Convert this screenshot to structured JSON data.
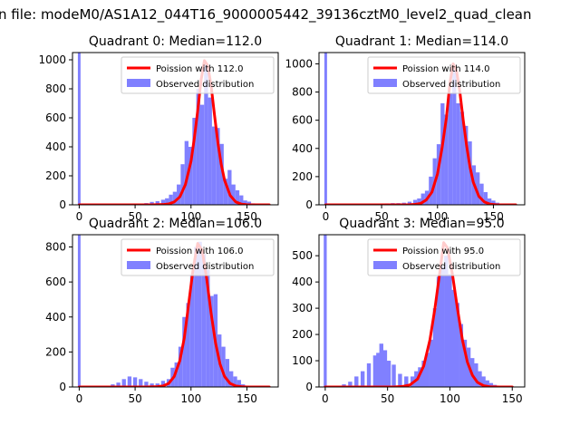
{
  "suptitle": "n file: modeM0/AS1A12_044T16_9000005442_39136cztM0_level2_quad_clean",
  "colors": {
    "poisson": "#ff0000",
    "hist": "#8080ff",
    "frame": "#000000"
  },
  "chart_data": [
    {
      "type": "bar",
      "title": "Quadrant 0: Median=112.0",
      "xlim": [
        -6,
        178
      ],
      "ylim": [
        0,
        1050
      ],
      "xticks": [
        0,
        50,
        100,
        150
      ],
      "yticks": [
        0,
        200,
        400,
        600,
        800,
        1000
      ],
      "legend": [
        "Poission with 112.0",
        "Observed distribution"
      ],
      "legend_loc": "upper right",
      "series": [
        {
          "name": "Poission with 112.0",
          "kind": "line",
          "x": [
            0,
            65,
            75,
            80,
            85,
            90,
            95,
            100,
            103,
            106,
            109,
            112,
            115,
            118,
            121,
            124,
            127,
            130,
            135,
            140,
            145,
            150,
            160,
            170
          ],
          "y": [
            0,
            0,
            2,
            6,
            20,
            55,
            140,
            300,
            460,
            650,
            860,
            995,
            960,
            820,
            620,
            430,
            280,
            170,
            65,
            20,
            5,
            1,
            0,
            0
          ]
        },
        {
          "name": "Observed distribution",
          "kind": "hist",
          "bin_width": 3.5,
          "spike": {
            "x": 0,
            "y": 1050
          },
          "x": [
            45,
            50,
            55,
            60,
            65,
            70,
            75,
            78.5,
            82,
            85.5,
            89,
            92.5,
            96,
            99.5,
            103,
            106.5,
            110,
            113.5,
            117,
            120.5,
            124,
            127.5,
            131,
            134.5,
            138,
            141.5,
            145,
            148.5,
            152,
            155.5
          ],
          "y": [
            2,
            3,
            5,
            12,
            20,
            25,
            35,
            45,
            70,
            90,
            140,
            280,
            440,
            400,
            600,
            800,
            690,
            970,
            740,
            540,
            530,
            420,
            180,
            240,
            140,
            100,
            65,
            30,
            22,
            10
          ]
        }
      ]
    },
    {
      "type": "bar",
      "title": "Quadrant 1: Median=114.0",
      "xlim": [
        -6,
        178
      ],
      "ylim": [
        0,
        1080
      ],
      "xticks": [
        0,
        50,
        100,
        150
      ],
      "yticks": [
        0,
        200,
        400,
        600,
        800,
        1000
      ],
      "legend": [
        "Poission with 114.0",
        "Observed distribution"
      ],
      "legend_loc": "upper right",
      "series": [
        {
          "name": "Poission with 114.0",
          "kind": "line",
          "x": [
            0,
            65,
            75,
            80,
            85,
            90,
            95,
            100,
            104,
            108,
            111,
            114,
            117,
            120,
            123,
            126,
            129,
            132,
            137,
            142,
            147,
            152,
            160,
            170
          ],
          "y": [
            0,
            0,
            1,
            3,
            10,
            35,
            90,
            220,
            400,
            620,
            860,
            1000,
            950,
            800,
            600,
            420,
            270,
            160,
            60,
            20,
            5,
            1,
            0,
            0
          ]
        },
        {
          "name": "Observed distribution",
          "kind": "hist",
          "bin_width": 3.5,
          "spike": {
            "x": 0,
            "y": 1080
          },
          "x": [
            50,
            55,
            60,
            65,
            70,
            75,
            80,
            83.5,
            87,
            90.5,
            94,
            97.5,
            101,
            104.5,
            108,
            111.5,
            115,
            118.5,
            122,
            125.5,
            129,
            132.5,
            136,
            139.5,
            143,
            146.5,
            150,
            153.5
          ],
          "y": [
            5,
            10,
            12,
            12,
            15,
            22,
            35,
            45,
            80,
            100,
            200,
            330,
            430,
            720,
            640,
            790,
            960,
            720,
            660,
            560,
            450,
            280,
            230,
            150,
            90,
            45,
            30,
            15
          ]
        }
      ]
    },
    {
      "type": "bar",
      "title": "Quadrant 2: Median=106.0",
      "xlim": [
        -6,
        178
      ],
      "ylim": [
        0,
        870
      ],
      "xticks": [
        0,
        50,
        100,
        150
      ],
      "yticks": [
        0,
        200,
        400,
        600,
        800
      ],
      "legend": [
        "Poission with 106.0",
        "Observed distribution"
      ],
      "legend_loc": "upper right",
      "series": [
        {
          "name": "Poission with 106.0",
          "kind": "line",
          "x": [
            0,
            60,
            70,
            75,
            80,
            85,
            90,
            94,
            98,
            102,
            106,
            110,
            114,
            118,
            122,
            126,
            130,
            135,
            140,
            145,
            150,
            160,
            170
          ],
          "y": [
            0,
            0,
            2,
            6,
            20,
            60,
            150,
            280,
            480,
            680,
            820,
            780,
            620,
            420,
            250,
            130,
            60,
            20,
            6,
            2,
            0,
            0,
            0
          ]
        },
        {
          "name": "Observed distribution",
          "kind": "hist",
          "bin_width": 3.5,
          "spike": {
            "x": 0,
            "y": 870
          },
          "x": [
            25,
            30,
            35,
            40,
            45,
            50,
            55,
            60,
            65,
            70,
            75,
            80,
            83.5,
            87,
            90.5,
            94,
            97.5,
            101,
            104.5,
            108,
            111.5,
            115,
            118.5,
            122,
            125.5,
            129,
            132.5,
            136,
            139.5,
            143,
            146.5,
            150
          ],
          "y": [
            5,
            15,
            25,
            45,
            60,
            55,
            45,
            30,
            20,
            20,
            35,
            45,
            110,
            140,
            230,
            400,
            480,
            640,
            800,
            830,
            760,
            670,
            520,
            530,
            300,
            230,
            160,
            90,
            60,
            40,
            15,
            8
          ]
        }
      ]
    },
    {
      "type": "bar",
      "title": "Quadrant 3: Median=95.0",
      "xlim": [
        -5,
        160
      ],
      "ylim": [
        0,
        580
      ],
      "xticks": [
        0,
        50,
        100,
        150
      ],
      "yticks": [
        0,
        100,
        200,
        300,
        400,
        500
      ],
      "legend": [
        "Poission with 95.0",
        "Observed distribution"
      ],
      "legend_loc": "upper right",
      "series": [
        {
          "name": "Poission with 95.0",
          "kind": "line",
          "x": [
            0,
            55,
            62,
            68,
            74,
            79,
            84,
            88,
            92,
            95,
            98,
            102,
            106,
            110,
            114,
            118,
            122,
            127,
            132,
            140,
            150
          ],
          "y": [
            0,
            0,
            2,
            8,
            30,
            80,
            180,
            300,
            440,
            550,
            530,
            430,
            300,
            180,
            95,
            45,
            18,
            5,
            1,
            0,
            0
          ]
        },
        {
          "name": "Observed distribution",
          "kind": "hist",
          "bin_width": 3.2,
          "spike": {
            "x": 0,
            "y": 580
          },
          "x": [
            10,
            15,
            20,
            25,
            30,
            35,
            40,
            42.5,
            45,
            48,
            51,
            55,
            60,
            65,
            70,
            73,
            76,
            79,
            82,
            85,
            88,
            91,
            94,
            97,
            100,
            103,
            106,
            109,
            112,
            115,
            118,
            121,
            124,
            127,
            130,
            133,
            136
          ],
          "y": [
            5,
            10,
            20,
            40,
            60,
            90,
            120,
            130,
            165,
            140,
            100,
            85,
            50,
            40,
            40,
            60,
            75,
            100,
            130,
            180,
            300,
            420,
            460,
            500,
            430,
            370,
            320,
            240,
            180,
            150,
            110,
            90,
            60,
            40,
            25,
            15,
            8
          ]
        }
      ]
    }
  ]
}
